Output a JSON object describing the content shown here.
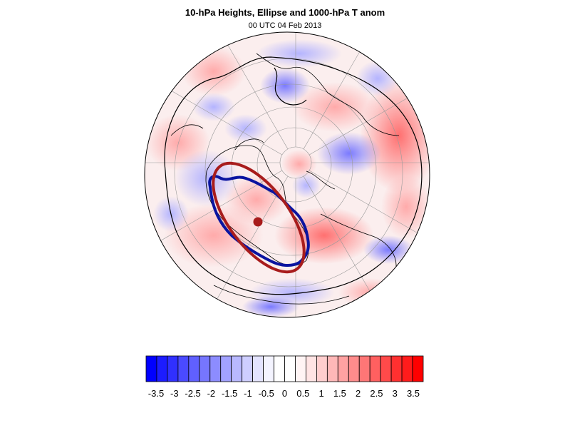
{
  "figure": {
    "title": "10-hPa Heights, Ellipse and 1000-hPa T anom",
    "subtitle": "00 UTC 04 Feb 2013"
  },
  "map": {
    "projection": "polar-stereographic-north-hemisphere",
    "field": "1000-hPa temperature anomaly",
    "overlays": [
      "10-hPa height contours",
      "vortex ellipse",
      "vortex edge contour",
      "vortex centroid"
    ],
    "colors": {
      "ellipse": "#a81c1c",
      "vortex_edge": "#0a14a0",
      "centroid": "#a81c1c",
      "height_contour": "#000000",
      "coastline": "#000000",
      "graticule": "#9a9a9a"
    }
  },
  "colorbar": {
    "labels": [
      "-3.5",
      "-3",
      "-2.5",
      "-2",
      "-1.5",
      "-1",
      "-0.5",
      "0",
      "0.5",
      "1",
      "1.5",
      "2",
      "2.5",
      "3",
      "3.5"
    ],
    "colors": [
      "#0000ff",
      "#1c1cff",
      "#3030ff",
      "#4a4aff",
      "#6060ff",
      "#7676ff",
      "#8c8cff",
      "#a2a2ff",
      "#b8b8ff",
      "#ceceff",
      "#e4e4ff",
      "#f4f4ff",
      "#ffffff",
      "#ffffff",
      "#fff4f4",
      "#ffe4e4",
      "#ffcece",
      "#ffb8b8",
      "#ffa2a2",
      "#ff8c8c",
      "#ff7676",
      "#ff6060",
      "#ff4a4a",
      "#ff3030",
      "#ff1c1c",
      "#ff0000"
    ]
  }
}
